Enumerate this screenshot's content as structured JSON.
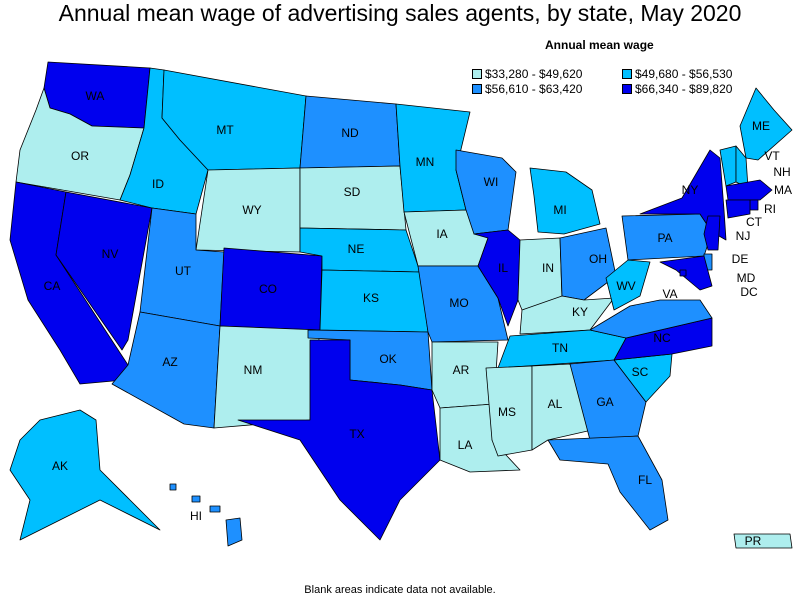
{
  "title": "Annual mean wage of advertising sales agents, by state, May 2020",
  "legend": {
    "title": "Annual mean wage",
    "bins": [
      {
        "label": "$33,280 - $49,620",
        "color": "#aeeeee"
      },
      {
        "label": "$49,680 - $56,530",
        "color": "#00bfff"
      },
      {
        "label": "$56,610 - $63,420",
        "color": "#1e90ff"
      },
      {
        "label": "$66,340 - $89,820",
        "color": "#0000ee"
      }
    ]
  },
  "footnote": "Blank areas indicate data not available.",
  "states": [
    {
      "abbr": "WA",
      "bin": 3
    },
    {
      "abbr": "OR",
      "bin": 0
    },
    {
      "abbr": "CA",
      "bin": 3
    },
    {
      "abbr": "NV",
      "bin": 3
    },
    {
      "abbr": "ID",
      "bin": 1
    },
    {
      "abbr": "MT",
      "bin": 1
    },
    {
      "abbr": "WY",
      "bin": 0
    },
    {
      "abbr": "UT",
      "bin": 2
    },
    {
      "abbr": "AZ",
      "bin": 2
    },
    {
      "abbr": "CO",
      "bin": 3
    },
    {
      "abbr": "NM",
      "bin": 0
    },
    {
      "abbr": "ND",
      "bin": 2
    },
    {
      "abbr": "SD",
      "bin": 0
    },
    {
      "abbr": "NE",
      "bin": 1
    },
    {
      "abbr": "KS",
      "bin": 1
    },
    {
      "abbr": "OK",
      "bin": 2
    },
    {
      "abbr": "TX",
      "bin": 3
    },
    {
      "abbr": "MN",
      "bin": 1
    },
    {
      "abbr": "IA",
      "bin": 0
    },
    {
      "abbr": "MO",
      "bin": 2
    },
    {
      "abbr": "AR",
      "bin": 0
    },
    {
      "abbr": "LA",
      "bin": 0
    },
    {
      "abbr": "WI",
      "bin": 2
    },
    {
      "abbr": "IL",
      "bin": 3
    },
    {
      "abbr": "MI",
      "bin": 1
    },
    {
      "abbr": "IN",
      "bin": 0
    },
    {
      "abbr": "OH",
      "bin": 2
    },
    {
      "abbr": "KY",
      "bin": 0
    },
    {
      "abbr": "TN",
      "bin": 1
    },
    {
      "abbr": "MS",
      "bin": 0
    },
    {
      "abbr": "AL",
      "bin": 0
    },
    {
      "abbr": "GA",
      "bin": 2
    },
    {
      "abbr": "FL",
      "bin": 2
    },
    {
      "abbr": "SC",
      "bin": 1
    },
    {
      "abbr": "NC",
      "bin": 3
    },
    {
      "abbr": "VA",
      "bin": 2
    },
    {
      "abbr": "WV",
      "bin": 1
    },
    {
      "abbr": "PA",
      "bin": 2
    },
    {
      "abbr": "NY",
      "bin": 3
    },
    {
      "abbr": "ME",
      "bin": 1
    },
    {
      "abbr": "VT",
      "bin": 1
    },
    {
      "abbr": "NH",
      "bin": 1
    },
    {
      "abbr": "MA",
      "bin": 3
    },
    {
      "abbr": "RI",
      "bin": 3
    },
    {
      "abbr": "CT",
      "bin": 3
    },
    {
      "abbr": "NJ",
      "bin": 3
    },
    {
      "abbr": "DE",
      "bin": 2
    },
    {
      "abbr": "MD",
      "bin": 3
    },
    {
      "abbr": "DC",
      "bin": 3
    },
    {
      "abbr": "AK",
      "bin": 1
    },
    {
      "abbr": "HI",
      "bin": 2
    },
    {
      "abbr": "PR",
      "bin": 0
    }
  ]
}
